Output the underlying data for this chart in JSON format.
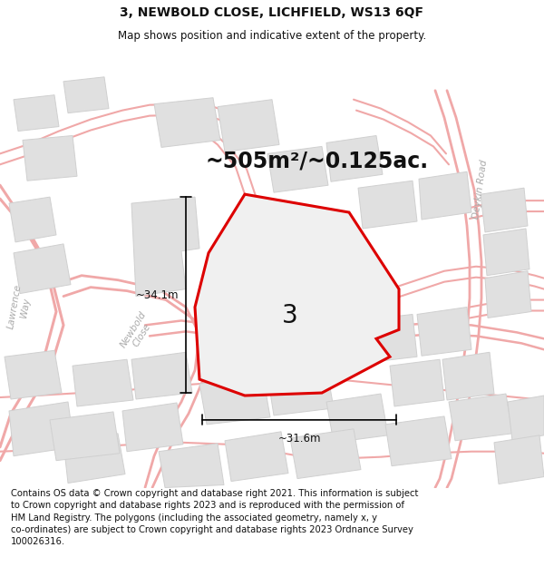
{
  "title": "3, NEWBOLD CLOSE, LICHFIELD, WS13 6QF",
  "subtitle": "Map shows position and indicative extent of the property.",
  "area_text": "~505m²/~0.125ac.",
  "dim1_text": "~34.1m",
  "dim2_text": "~31.6m",
  "label": "3",
  "footer": "Contains OS data © Crown copyright and database right 2021. This information is subject to Crown copyright and database rights 2023 and is reproduced with the permission of HM Land Registry. The polygons (including the associated geometry, namely x, y co-ordinates) are subject to Crown copyright and database rights 2023 Ordnance Survey 100026316.",
  "bg_color": "#ffffff",
  "map_bg": "#ffffff",
  "road_color": "#f5c0c0",
  "building_fill": "#e0e0e0",
  "building_edge": "#d0d0d0",
  "highlight_fill": "#f0f0f0",
  "highlight_edge": "#dd0000",
  "road_line_color": "#f0a8a8",
  "text_color": "#111111",
  "road_label_color": "#aaaaaa",
  "title_fontsize": 10,
  "subtitle_fontsize": 8.5,
  "area_fontsize": 17,
  "label_fontsize": 20,
  "footer_fontsize": 7.2,
  "dim_fontsize": 8.5
}
